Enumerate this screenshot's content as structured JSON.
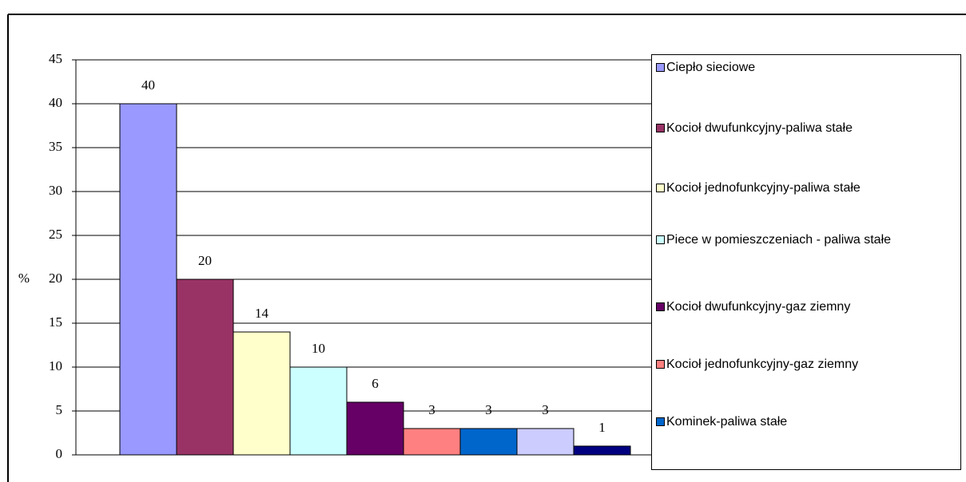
{
  "chart_data": {
    "type": "bar",
    "y_label": "%",
    "categories": [
      null
    ],
    "series": [
      {
        "name": "Ciepło sieciowe",
        "color": "#9999ff",
        "values": [
          40
        ]
      },
      {
        "name": "Kocioł dwufunkcyjny-paliwa stałe",
        "color": "#993366",
        "values": [
          20
        ]
      },
      {
        "name": "Kocioł jednofunkcyjny-paliwa stałe",
        "color": "#ffffcc",
        "values": [
          14
        ]
      },
      {
        "name": "Piece w pomieszczeniach - paliwa stałe",
        "color": "#ccffff",
        "values": [
          10
        ]
      },
      {
        "name": "Kocioł dwufunkcyjny-gaz ziemny",
        "color": "#660066",
        "values": [
          6
        ]
      },
      {
        "name": "Kocioł jednofunkcyjny-gaz ziemny",
        "color": "#ff8080",
        "values": [
          3
        ]
      },
      {
        "name": "Kominek-paliwa stałe",
        "color": "#0066cc",
        "values": [
          3
        ]
      },
      {
        "name": null,
        "color": "#ccccff",
        "values": [
          3
        ]
      },
      {
        "name": null,
        "color": "#000080",
        "values": [
          1
        ]
      }
    ],
    "ylim": [
      0,
      45
    ],
    "yticks": [
      0,
      5,
      10,
      15,
      20,
      25,
      30,
      35,
      40,
      45
    ],
    "grid": true
  }
}
